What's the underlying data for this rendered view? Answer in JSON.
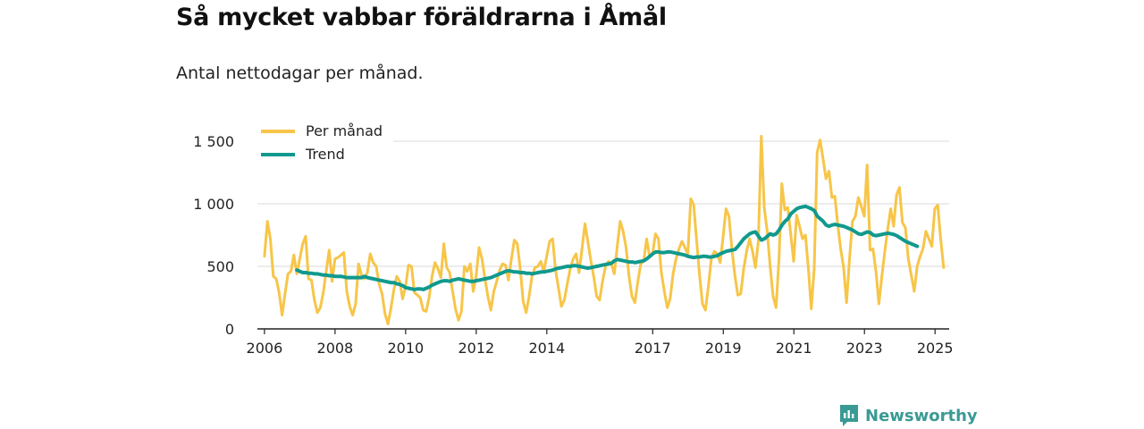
{
  "header": {
    "title": "Så mycket vabbar föräldrarna i Åmål",
    "subtitle": "Antal nettodagar per månad."
  },
  "brand": {
    "name": "Newsworthy",
    "icon": "newsworthy-logo-icon"
  },
  "colors": {
    "monthly": "#f7c548",
    "trend": "#11998e",
    "grid": "#d9d9d9",
    "axis": "#222222",
    "brand": "#3a9a94"
  },
  "chart_data": {
    "type": "line",
    "title": "Så mycket vabbar föräldrarna i Åmål",
    "subtitle": "Antal nettodagar per månad.",
    "xlabel": "",
    "ylabel": "",
    "ylim": [
      0,
      1500
    ],
    "xlim": [
      2005.8,
      2025.4
    ],
    "grid": true,
    "legend_position": "top-left",
    "x_ticks": [
      2006,
      2008,
      2010,
      2012,
      2014,
      2017,
      2019,
      2021,
      2023,
      2025
    ],
    "y_ticks": [
      0,
      500,
      1000,
      1500
    ],
    "y_tick_labels": [
      "0",
      "500",
      "1 000",
      "1 500"
    ],
    "series": [
      {
        "name": "Per månad",
        "x_start": 2006.0,
        "x_step": 0.0833,
        "values": [
          580,
          860,
          720,
          420,
          400,
          290,
          110,
          280,
          440,
          460,
          590,
          440,
          560,
          680,
          740,
          400,
          390,
          230,
          130,
          170,
          290,
          460,
          630,
          380,
          560,
          570,
          590,
          610,
          300,
          180,
          110,
          200,
          520,
          430,
          400,
          450,
          600,
          530,
          500,
          360,
          280,
          120,
          40,
          160,
          310,
          420,
          380,
          240,
          340,
          510,
          500,
          290,
          270,
          250,
          150,
          140,
          250,
          420,
          530,
          480,
          410,
          680,
          490,
          450,
          300,
          160,
          70,
          140,
          500,
          460,
          520,
          300,
          420,
          650,
          560,
          400,
          260,
          150,
          300,
          380,
          470,
          520,
          510,
          390,
          560,
          710,
          680,
          480,
          220,
          130,
          260,
          420,
          490,
          500,
          540,
          460,
          580,
          700,
          720,
          470,
          330,
          180,
          230,
          360,
          480,
          560,
          600,
          450,
          640,
          840,
          700,
          550,
          420,
          260,
          230,
          380,
          500,
          540,
          520,
          440,
          660,
          860,
          780,
          650,
          420,
          260,
          210,
          380,
          520,
          540,
          720,
          580,
          600,
          760,
          720,
          450,
          300,
          170,
          240,
          440,
          560,
          640,
          700,
          650,
          600,
          1040,
          990,
          700,
          430,
          200,
          150,
          340,
          560,
          620,
          600,
          530,
          740,
          960,
          900,
          640,
          430,
          270,
          280,
          480,
          620,
          720,
          620,
          490,
          700,
          1540,
          970,
          780,
          500,
          260,
          170,
          560,
          1160,
          950,
          970,
          760,
          540,
          910,
          820,
          720,
          750,
          480,
          160,
          480,
          1410,
          1510,
          1360,
          1200,
          1260,
          1050,
          1060,
          830,
          640,
          490,
          210,
          560,
          860,
          900,
          1050,
          980,
          900,
          1310,
          630,
          640,
          460,
          200,
          420,
          620,
          800,
          960,
          820,
          1070,
          1130,
          850,
          810,
          560,
          430,
          300,
          500,
          580,
          640,
          780,
          720,
          660,
          960,
          990,
          720,
          490
        ]
      },
      {
        "name": "Trend",
        "x_start": 2006.92,
        "x_step": 0.0833,
        "values": [
          470,
          460,
          450,
          450,
          445,
          445,
          440,
          440,
          435,
          430,
          430,
          425,
          425,
          420,
          420,
          420,
          415,
          410,
          410,
          410,
          410,
          410,
          410,
          420,
          410,
          405,
          400,
          395,
          390,
          385,
          380,
          375,
          370,
          370,
          360,
          355,
          345,
          330,
          325,
          320,
          315,
          320,
          320,
          315,
          325,
          335,
          350,
          360,
          370,
          380,
          385,
          385,
          380,
          390,
          395,
          400,
          395,
          390,
          385,
          380,
          380,
          385,
          390,
          395,
          400,
          405,
          410,
          420,
          430,
          440,
          450,
          460,
          465,
          460,
          455,
          455,
          450,
          450,
          445,
          445,
          440,
          445,
          450,
          455,
          455,
          460,
          465,
          470,
          480,
          485,
          490,
          495,
          500,
          500,
          505,
          505,
          500,
          495,
          490,
          485,
          490,
          495,
          500,
          505,
          510,
          515,
          520,
          525,
          545,
          555,
          550,
          545,
          540,
          535,
          535,
          530,
          535,
          540,
          545,
          560,
          580,
          600,
          615,
          615,
          610,
          610,
          615,
          615,
          610,
          605,
          600,
          595,
          590,
          580,
          575,
          570,
          575,
          575,
          580,
          580,
          575,
          575,
          580,
          585,
          600,
          610,
          620,
          625,
          630,
          635,
          660,
          690,
          720,
          740,
          760,
          770,
          775,
          740,
          710,
          720,
          740,
          760,
          750,
          760,
          790,
          830,
          860,
          880,
          920,
          940,
          960,
          970,
          975,
          980,
          970,
          960,
          945,
          900,
          880,
          860,
          830,
          820,
          830,
          835,
          830,
          825,
          820,
          810,
          800,
          790,
          775,
          760,
          755,
          765,
          775,
          770,
          750,
          745,
          750,
          755,
          760,
          765,
          760,
          755,
          745,
          730,
          715,
          700,
          690,
          680,
          670,
          660
        ]
      }
    ]
  }
}
